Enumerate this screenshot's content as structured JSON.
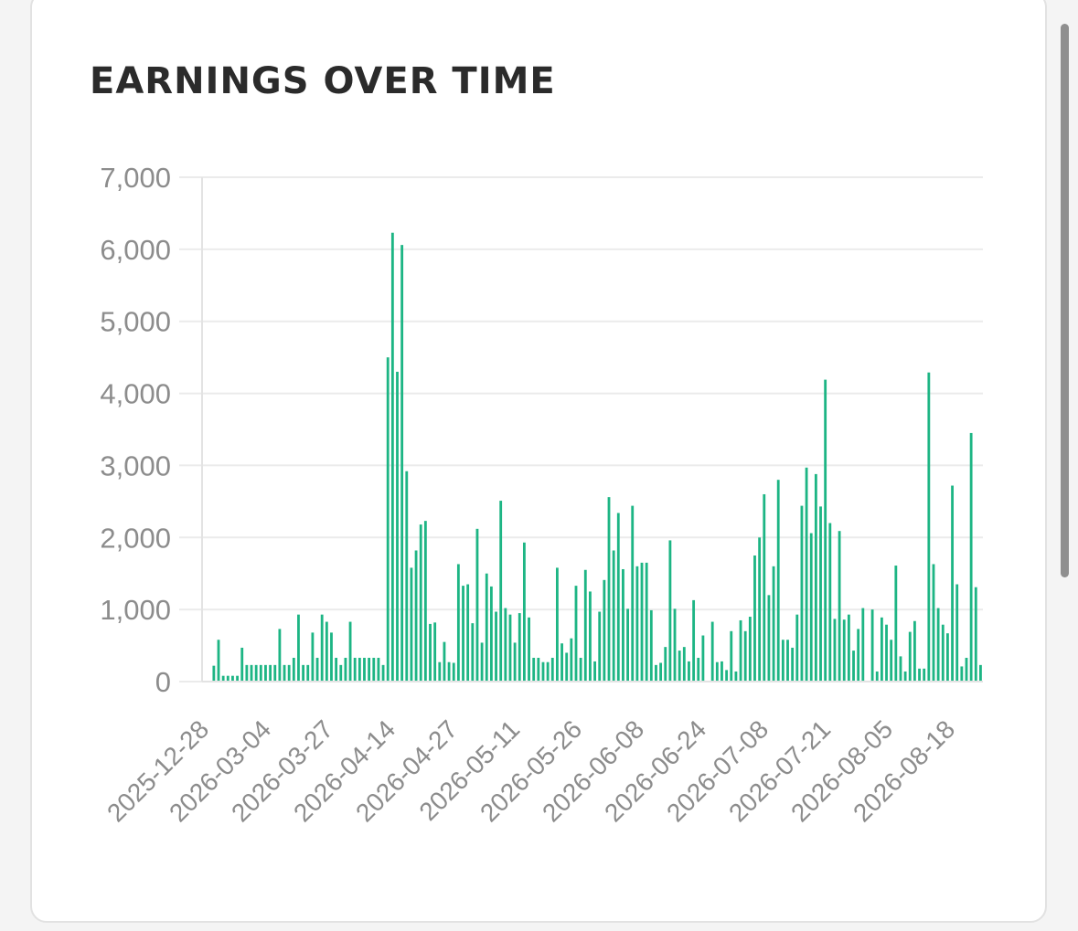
{
  "chart_data": {
    "type": "bar",
    "title": "EARNINGS OVER TIME",
    "xlabel": "",
    "ylabel": "",
    "ylim": [
      0,
      7000
    ],
    "y_ticks": [
      0,
      1000,
      2000,
      3000,
      4000,
      5000,
      6000,
      7000
    ],
    "y_tick_labels": [
      "0",
      "1,000",
      "2,000",
      "3,000",
      "4,000",
      "5,000",
      "6,000",
      "7,000"
    ],
    "x_tick_labels": [
      "2025-12-28",
      "2026-03-04",
      "2026-03-27",
      "2026-04-14",
      "2026-04-27",
      "2026-05-11",
      "2026-05-26",
      "2026-06-08",
      "2026-06-24",
      "2026-07-08",
      "2026-07-21",
      "2026-08-05",
      "2026-08-18"
    ],
    "grid": true,
    "bar_color": "#1db584",
    "values": [
      10,
      10,
      220,
      580,
      80,
      80,
      80,
      80,
      470,
      230,
      230,
      230,
      230,
      230,
      230,
      230,
      730,
      230,
      230,
      330,
      930,
      230,
      230,
      680,
      330,
      930,
      830,
      680,
      330,
      230,
      330,
      830,
      330,
      330,
      330,
      330,
      330,
      330,
      230,
      4500,
      6230,
      4300,
      6060,
      2920,
      1580,
      1820,
      2180,
      2230,
      800,
      820,
      270,
      550,
      270,
      260,
      1630,
      1330,
      1350,
      810,
      2120,
      540,
      1500,
      1320,
      970,
      2510,
      1020,
      930,
      540,
      950,
      1930,
      890,
      330,
      330,
      270,
      270,
      330,
      1580,
      530,
      400,
      600,
      1330,
      330,
      1550,
      1250,
      280,
      970,
      1410,
      2560,
      1820,
      2340,
      1560,
      1010,
      2440,
      1600,
      1650,
      1650,
      990,
      230,
      260,
      480,
      1960,
      1010,
      430,
      480,
      280,
      1130,
      330,
      640,
      0,
      830,
      270,
      280,
      160,
      700,
      140,
      850,
      700,
      900,
      1750,
      2000,
      2600,
      1200,
      1600,
      2800,
      580,
      580,
      470,
      930,
      2440,
      2970,
      2060,
      2880,
      2430,
      4190,
      2200,
      870,
      2090,
      860,
      930,
      430,
      730,
      1020,
      0,
      1000,
      140,
      890,
      790,
      580,
      1610,
      350,
      140,
      690,
      840,
      180,
      180,
      4290,
      1630,
      1020,
      790,
      670,
      2720,
      1350,
      210,
      330,
      3450,
      1310,
      230
    ]
  }
}
